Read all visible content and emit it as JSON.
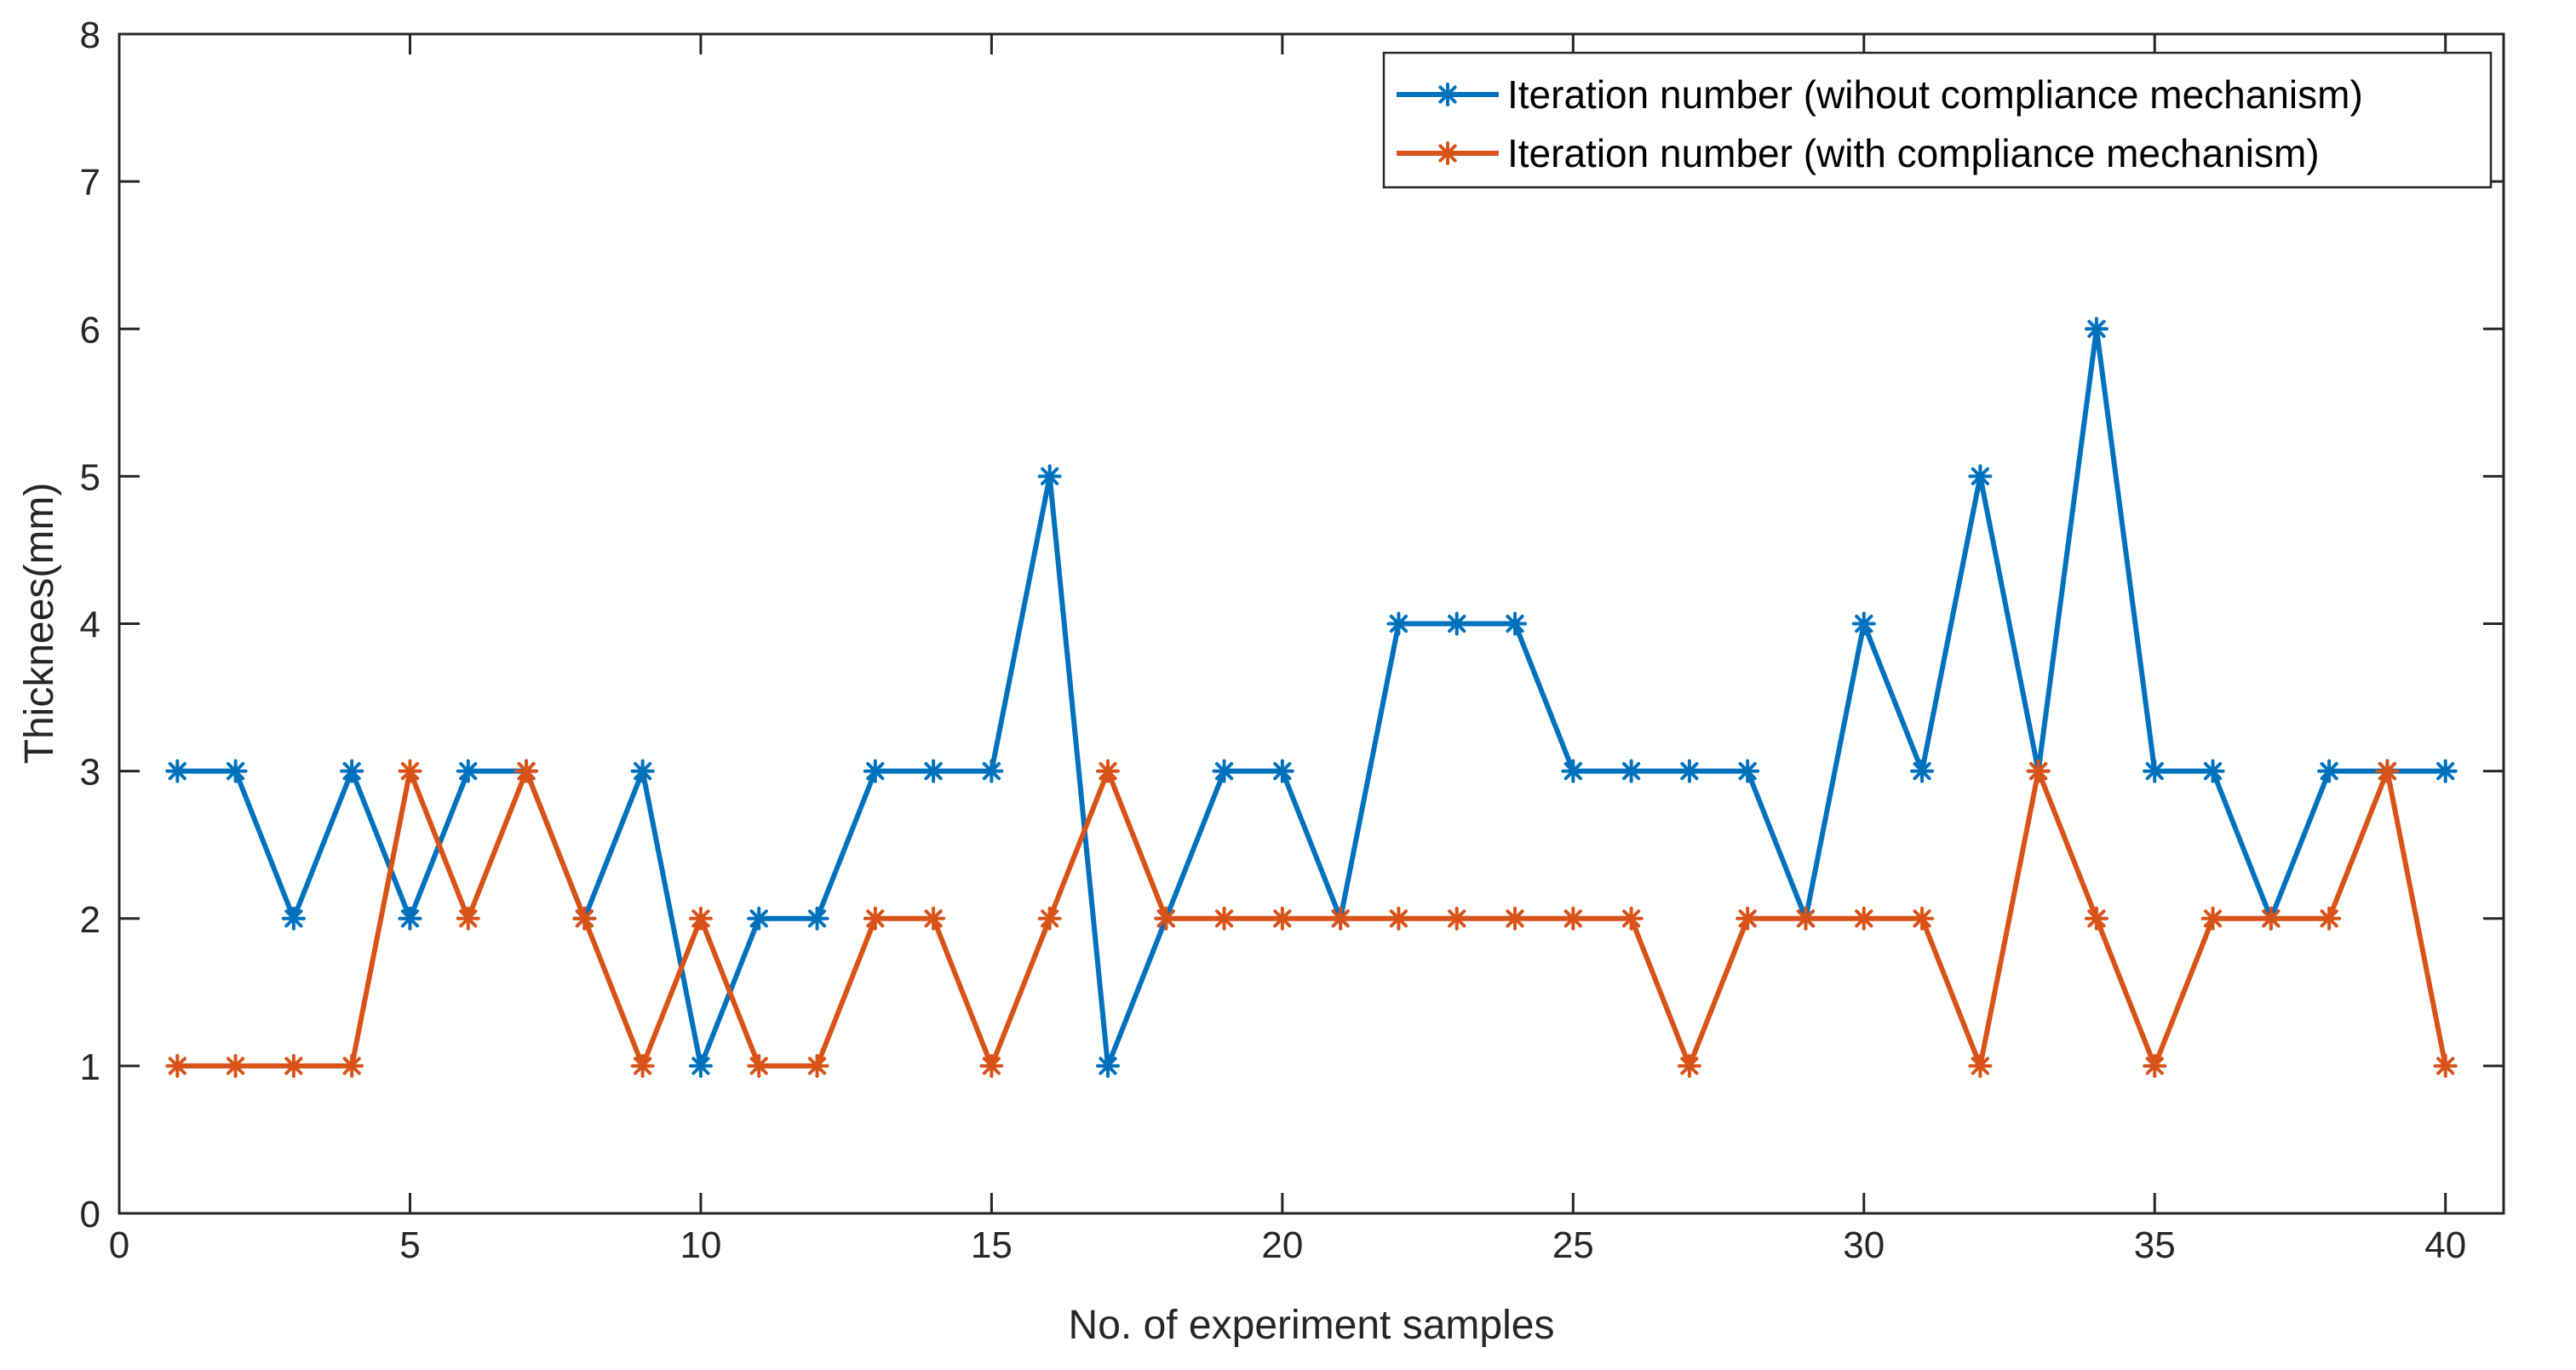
{
  "chart_data": {
    "type": "line",
    "title": "",
    "xlabel": "No. of experiment samples",
    "ylabel": "Thicknees(mm)",
    "xlim": [
      0,
      41
    ],
    "ylim": [
      0,
      8
    ],
    "xticks": [
      0,
      5,
      10,
      15,
      20,
      25,
      30,
      35,
      40
    ],
    "yticks": [
      0,
      1,
      2,
      3,
      4,
      5,
      6,
      7,
      8
    ],
    "grid": false,
    "legend_position": "top-right",
    "x": [
      1,
      2,
      3,
      4,
      5,
      6,
      7,
      8,
      9,
      10,
      11,
      12,
      13,
      14,
      15,
      16,
      17,
      18,
      19,
      20,
      21,
      22,
      23,
      24,
      25,
      26,
      27,
      28,
      29,
      30,
      31,
      32,
      33,
      34,
      35,
      36,
      37,
      38,
      39,
      40
    ],
    "series": [
      {
        "name": "Iteration number (wihout compliance mechanism)",
        "color": "#0072BD",
        "marker": "asterisk",
        "values": [
          3,
          3,
          2,
          3,
          2,
          3,
          3,
          2,
          3,
          1,
          2,
          2,
          3,
          3,
          3,
          5,
          1,
          2,
          3,
          3,
          2,
          4,
          4,
          4,
          3,
          3,
          3,
          3,
          2,
          4,
          3,
          5,
          3,
          6,
          3,
          3,
          2,
          3,
          3,
          3
        ]
      },
      {
        "name": "Iteration number (with compliance mechanism)",
        "color": "#D95319",
        "marker": "asterisk",
        "values": [
          1,
          1,
          1,
          1,
          3,
          2,
          3,
          2,
          1,
          2,
          1,
          1,
          2,
          2,
          1,
          2,
          3,
          2,
          2,
          2,
          2,
          2,
          2,
          2,
          2,
          2,
          1,
          2,
          2,
          2,
          2,
          1,
          3,
          2,
          1,
          2,
          2,
          2,
          3,
          1
        ]
      }
    ]
  }
}
